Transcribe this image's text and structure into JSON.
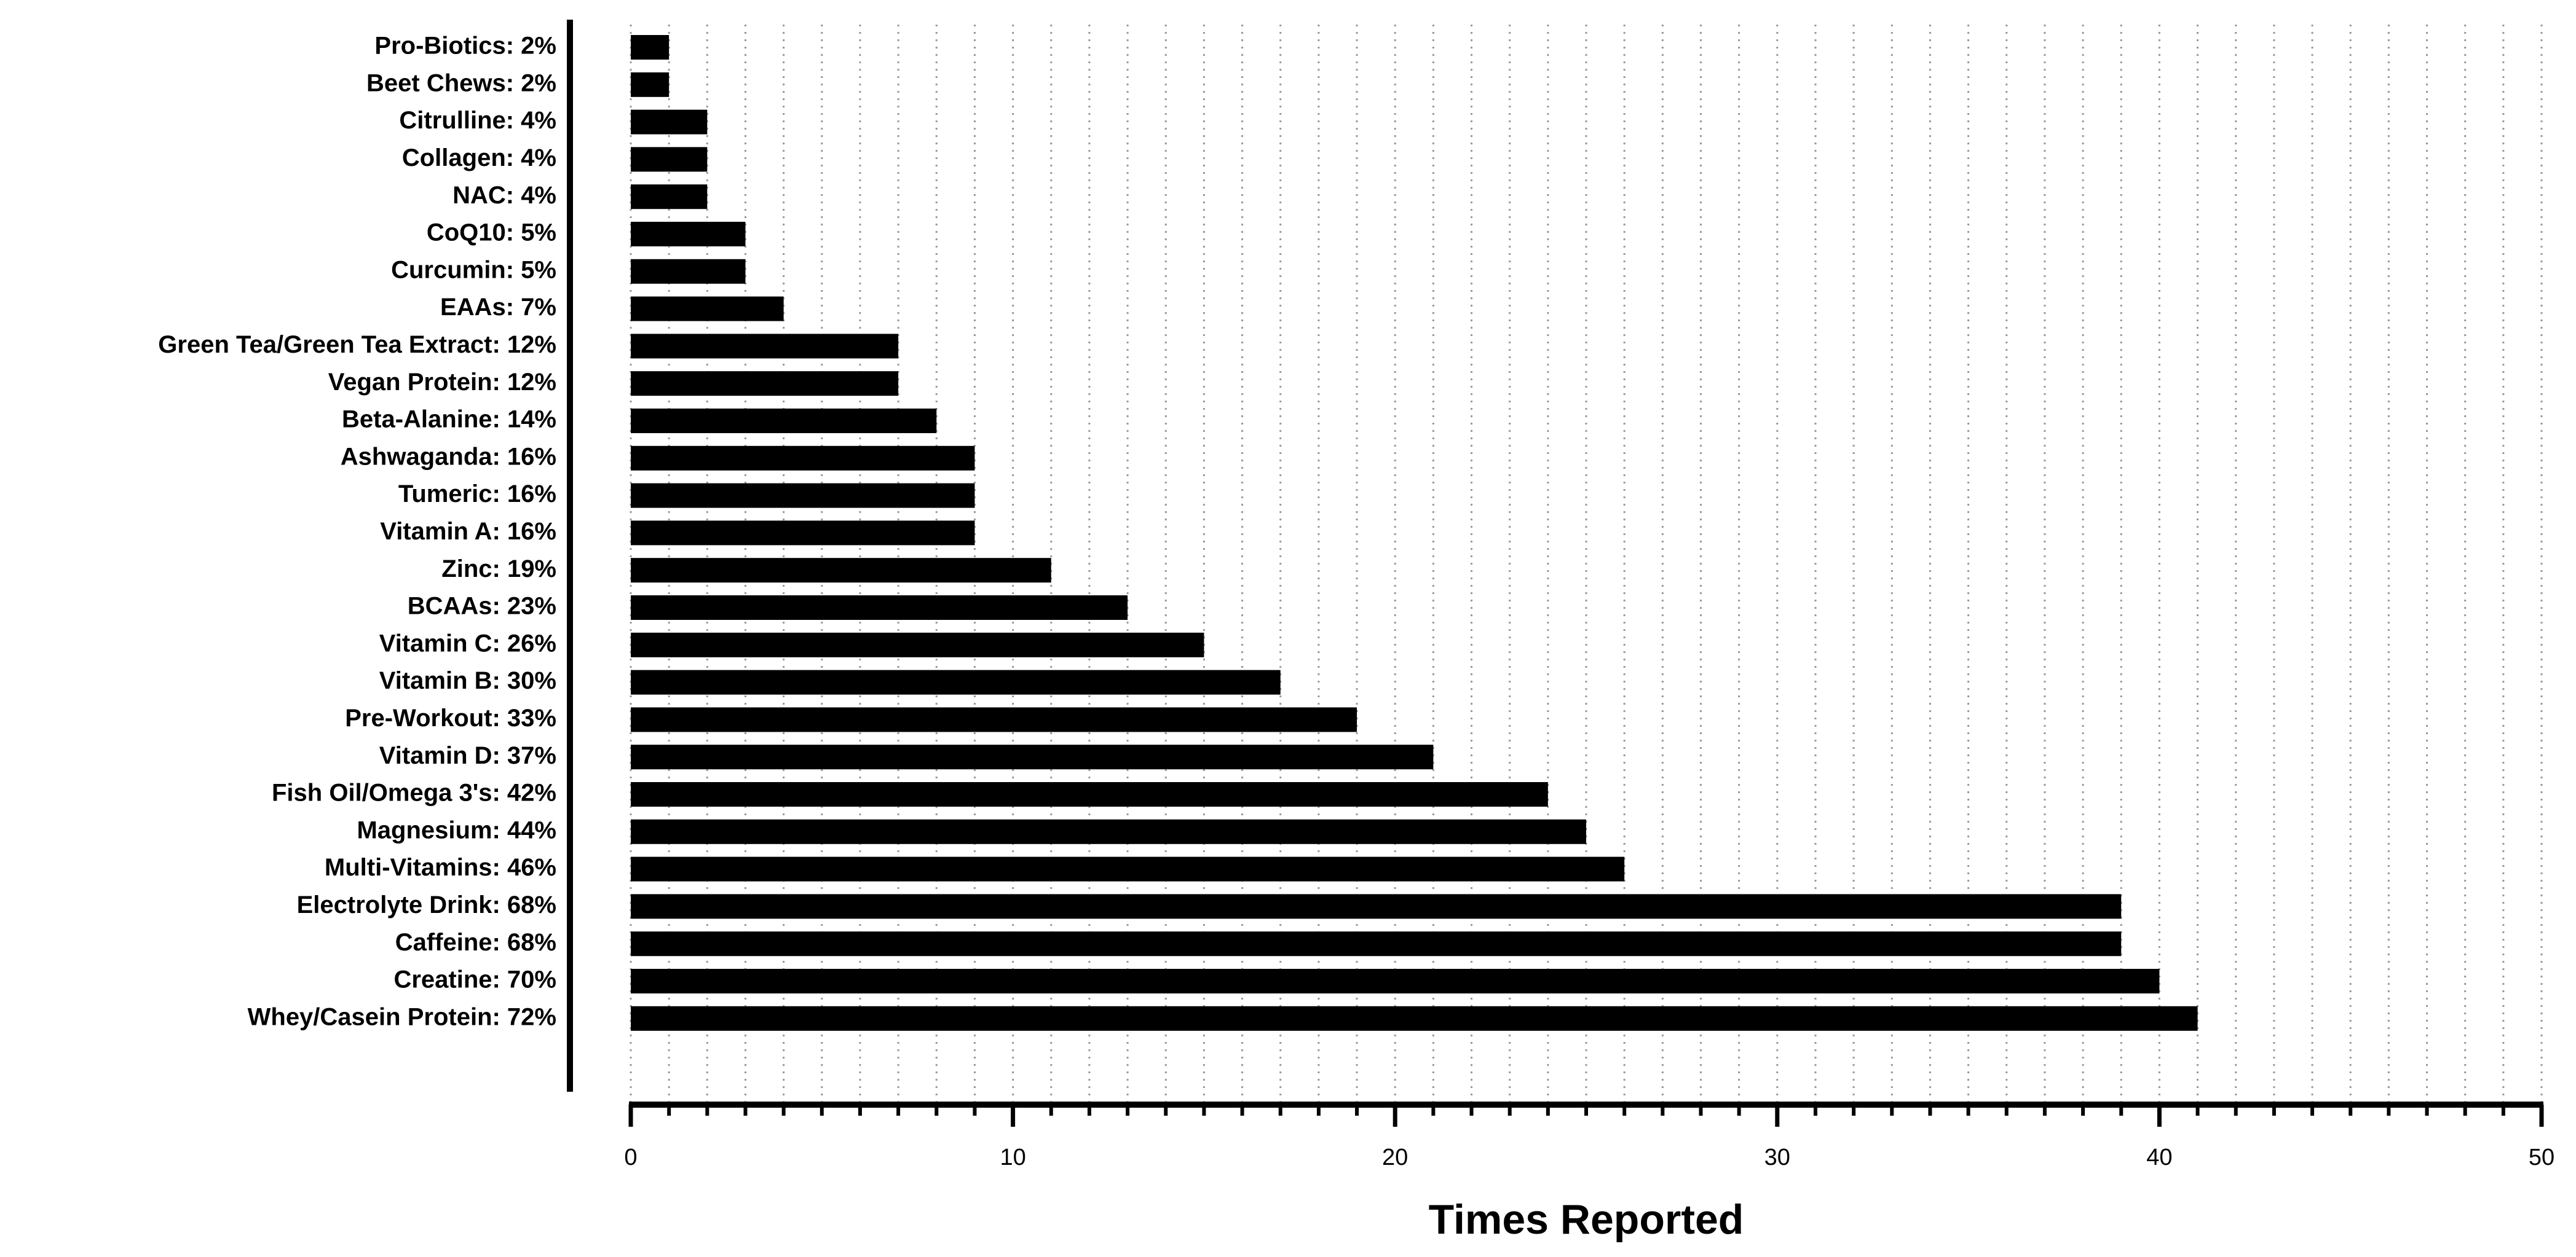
{
  "chart_data": {
    "type": "barh",
    "x_label": "Times Reported",
    "categories": [
      "Pro-Biotics: 2%",
      "Beet Chews: 2%",
      "Citrulline: 4%",
      "Collagen: 4%",
      "NAC: 4%",
      "CoQ10: 5%",
      "Curcumin: 5%",
      "EAAs: 7%",
      "Green Tea/Green Tea Extract: 12%",
      "Vegan Protein: 12%",
      "Beta-Alanine: 14%",
      "Ashwaganda: 16%",
      "Tumeric: 16%",
      "Vitamin A: 16%",
      "Zinc: 19%",
      "BCAAs: 23%",
      "Vitamin C: 26%",
      "Vitamin B: 30%",
      "Pre-Workout: 33%",
      "Vitamin D: 37%",
      "Fish Oil/Omega 3's: 42%",
      "Magnesium: 44%",
      "Multi-Vitamins: 46%",
      "Electrolyte Drink: 68%",
      "Caffeine: 68%",
      "Creatine: 70%",
      "Whey/Casein Protein: 72%"
    ],
    "values": [
      1,
      1,
      2,
      2,
      2,
      3,
      3,
      4,
      7,
      7,
      8,
      9,
      9,
      9,
      11,
      13,
      15,
      17,
      19,
      21,
      24,
      25,
      26,
      39,
      39,
      40,
      41
    ],
    "color": "#000000",
    "xlim": [
      0,
      50
    ],
    "xticks": [
      0,
      10,
      20,
      30,
      40,
      50
    ],
    "xminorticks": [
      0,
      1,
      2,
      3,
      4,
      5,
      6,
      7,
      8,
      9,
      10,
      11,
      12,
      13,
      14,
      15,
      16,
      17,
      18,
      19,
      20,
      21,
      22,
      23,
      24,
      25,
      26,
      27,
      28,
      29,
      30,
      31,
      32,
      33,
      34,
      35,
      36,
      37,
      38,
      39,
      40,
      41,
      42,
      43,
      44,
      45,
      46,
      47,
      48,
      49,
      50
    ],
    "grid": true
  }
}
